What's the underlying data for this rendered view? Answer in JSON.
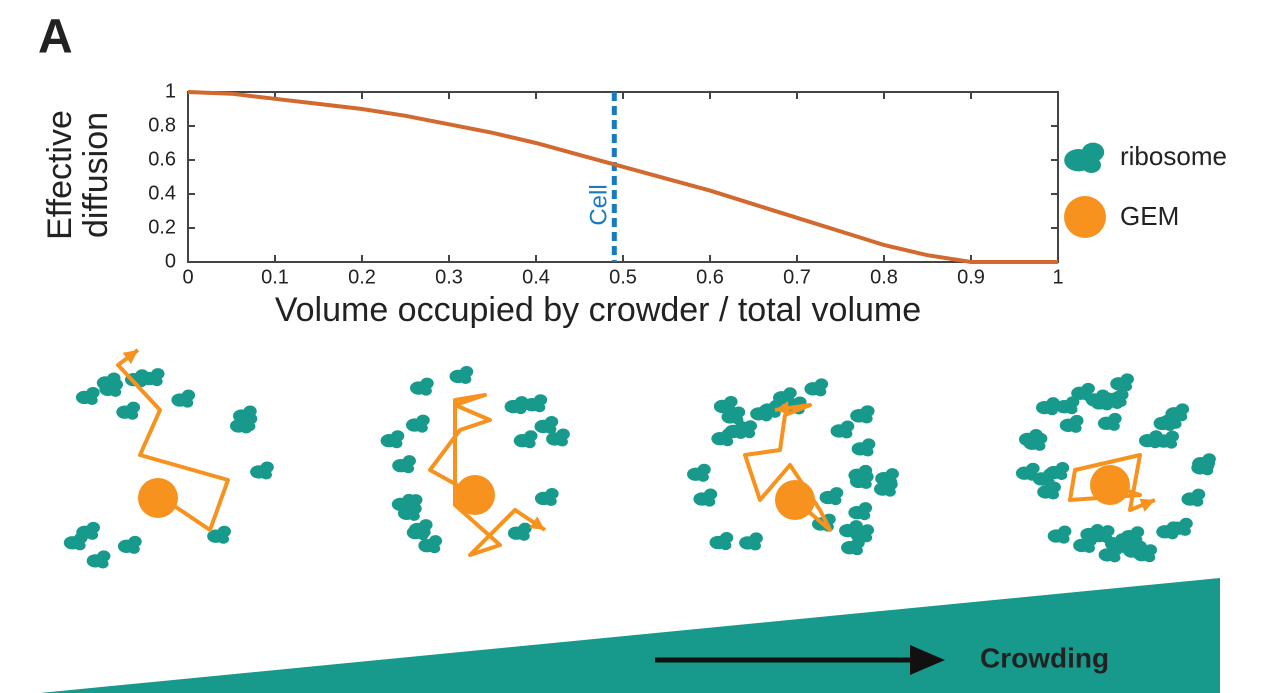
{
  "panel_label": "A",
  "chart_data": {
    "type": "line",
    "xlabel": "Volume occupied by crowder / total volume",
    "ylabel_lines": [
      "Effective",
      "diffusion"
    ],
    "x": [
      0,
      0.05,
      0.1,
      0.15,
      0.2,
      0.25,
      0.3,
      0.35,
      0.4,
      0.45,
      0.5,
      0.55,
      0.6,
      0.65,
      0.7,
      0.75,
      0.8,
      0.85,
      0.9,
      0.95,
      1
    ],
    "series": [
      {
        "color": "#d2692e",
        "values": [
          1,
          0.99,
          0.96,
          0.93,
          0.9,
          0.86,
          0.81,
          0.76,
          0.7,
          0.63,
          0.56,
          0.49,
          0.42,
          0.34,
          0.26,
          0.18,
          0.1,
          0.04,
          0,
          0,
          0
        ]
      }
    ],
    "xlim": [
      0,
      1
    ],
    "xticks": [
      0,
      0.1,
      0.2,
      0.3,
      0.4,
      0.5,
      0.6,
      0.7,
      0.8,
      0.9,
      1
    ],
    "ylim": [
      0,
      1
    ],
    "yticks": [
      0,
      0.2,
      0.4,
      0.6,
      0.8,
      1
    ],
    "vlines": [
      {
        "x": 0.49,
        "label": "Cell",
        "color": "#1a7abf"
      }
    ]
  },
  "legend": [
    {
      "label": "ribosome",
      "color": "#179a8c"
    },
    {
      "label": "GEM",
      "color": "#f7921e"
    }
  ],
  "crowding_label": "Crowding"
}
